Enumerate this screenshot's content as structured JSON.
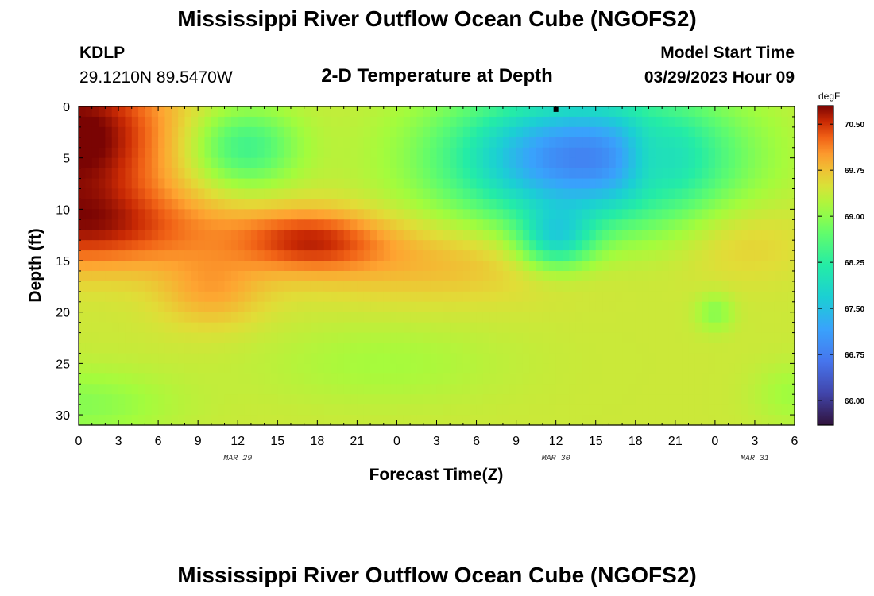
{
  "page": {
    "title": "Mississippi River Outflow Ocean Cube (NGOFS2)",
    "title_repeat": "Mississippi River Outflow Ocean Cube (NGOFS2)",
    "station": {
      "id": "KDLP",
      "coords": "29.1210N  89.5470W"
    },
    "model_start": {
      "label": "Model Start Time",
      "value": "03/29/2023 Hour 09"
    }
  },
  "chart_data": {
    "type": "heatmap",
    "title": "2-D Temperature at Depth",
    "xlabel": "Forecast Time(Z)",
    "ylabel": "Depth (ft)",
    "x_tick_labels": [
      "0",
      "3",
      "6",
      "9",
      "12",
      "15",
      "18",
      "21",
      "0",
      "3",
      "6",
      "9",
      "12",
      "15",
      "18",
      "21",
      "0",
      "3",
      "6"
    ],
    "x_range_hours": [
      0,
      54
    ],
    "date_labels": [
      {
        "label": "MAR 29",
        "hour": 12
      },
      {
        "label": "MAR 30",
        "hour": 36
      },
      {
        "label": "MAR 31",
        "hour": 51
      }
    ],
    "y_ticks": [
      0,
      5,
      10,
      15,
      20,
      25,
      30
    ],
    "y_tick_labels": [
      "0",
      "5",
      "10",
      "15",
      "20",
      "25",
      "30"
    ],
    "ylim": [
      0,
      31
    ],
    "colorbar": {
      "unit": "degF",
      "min": 65.6,
      "max": 70.8,
      "ticks": [
        70.5,
        69.75,
        69.0,
        68.25,
        67.5,
        66.75,
        66.0
      ],
      "tick_labels": [
        "70.50",
        "69.75",
        "69.00",
        "68.25",
        "67.50",
        "66.75",
        "66.00"
      ],
      "colormap": "turbo"
    },
    "background_degF": 69.4,
    "features_degF": [
      {
        "t_h": 0,
        "d_ft": 3,
        "st_h": 7,
        "sd_ft": 8,
        "amp": 1.5
      },
      {
        "t_h": 1,
        "d_ft": 12,
        "st_h": 11,
        "sd_ft": 4,
        "amp": 0.9
      },
      {
        "t_h": 10,
        "d_ft": 18,
        "st_h": 4,
        "sd_ft": 3.5,
        "amp": 0.5
      },
      {
        "t_h": 17.5,
        "d_ft": 13,
        "st_h": 5.5,
        "sd_ft": 3,
        "amp": 0.95
      },
      {
        "t_h": 27,
        "d_ft": 15,
        "st_h": 11,
        "sd_ft": 4,
        "amp": 0.45
      },
      {
        "t_h": 12.5,
        "d_ft": 4,
        "st_h": 4,
        "sd_ft": 4,
        "amp": -1.0
      },
      {
        "t_h": 38,
        "d_ft": 5,
        "st_h": 10,
        "sd_ft": 6.5,
        "amp": -2.6
      },
      {
        "t_h": 36,
        "d_ft": 13,
        "st_h": 2.8,
        "sd_ft": 2.8,
        "amp": -1.3
      },
      {
        "t_h": 43,
        "d_ft": 5,
        "st_h": 2,
        "sd_ft": 4,
        "amp": 0.5
      },
      {
        "t_h": 48,
        "d_ft": 20,
        "st_h": 1.4,
        "sd_ft": 1.8,
        "amp": -0.45
      },
      {
        "t_h": 0,
        "d_ft": 29,
        "st_h": 7,
        "sd_ft": 3.5,
        "amp": -0.45
      },
      {
        "t_h": 23,
        "d_ft": 25,
        "st_h": 9,
        "sd_ft": 4,
        "amp": -0.25
      },
      {
        "t_h": 54,
        "d_ft": 28,
        "st_h": 3,
        "sd_ft": 3,
        "amp": -0.3
      },
      {
        "t_h": 50,
        "d_ft": 13,
        "st_h": 5,
        "sd_ft": 4,
        "amp": 0.3
      }
    ],
    "min_marker": {
      "hour": 36,
      "depth_ft": 0.3
    }
  }
}
